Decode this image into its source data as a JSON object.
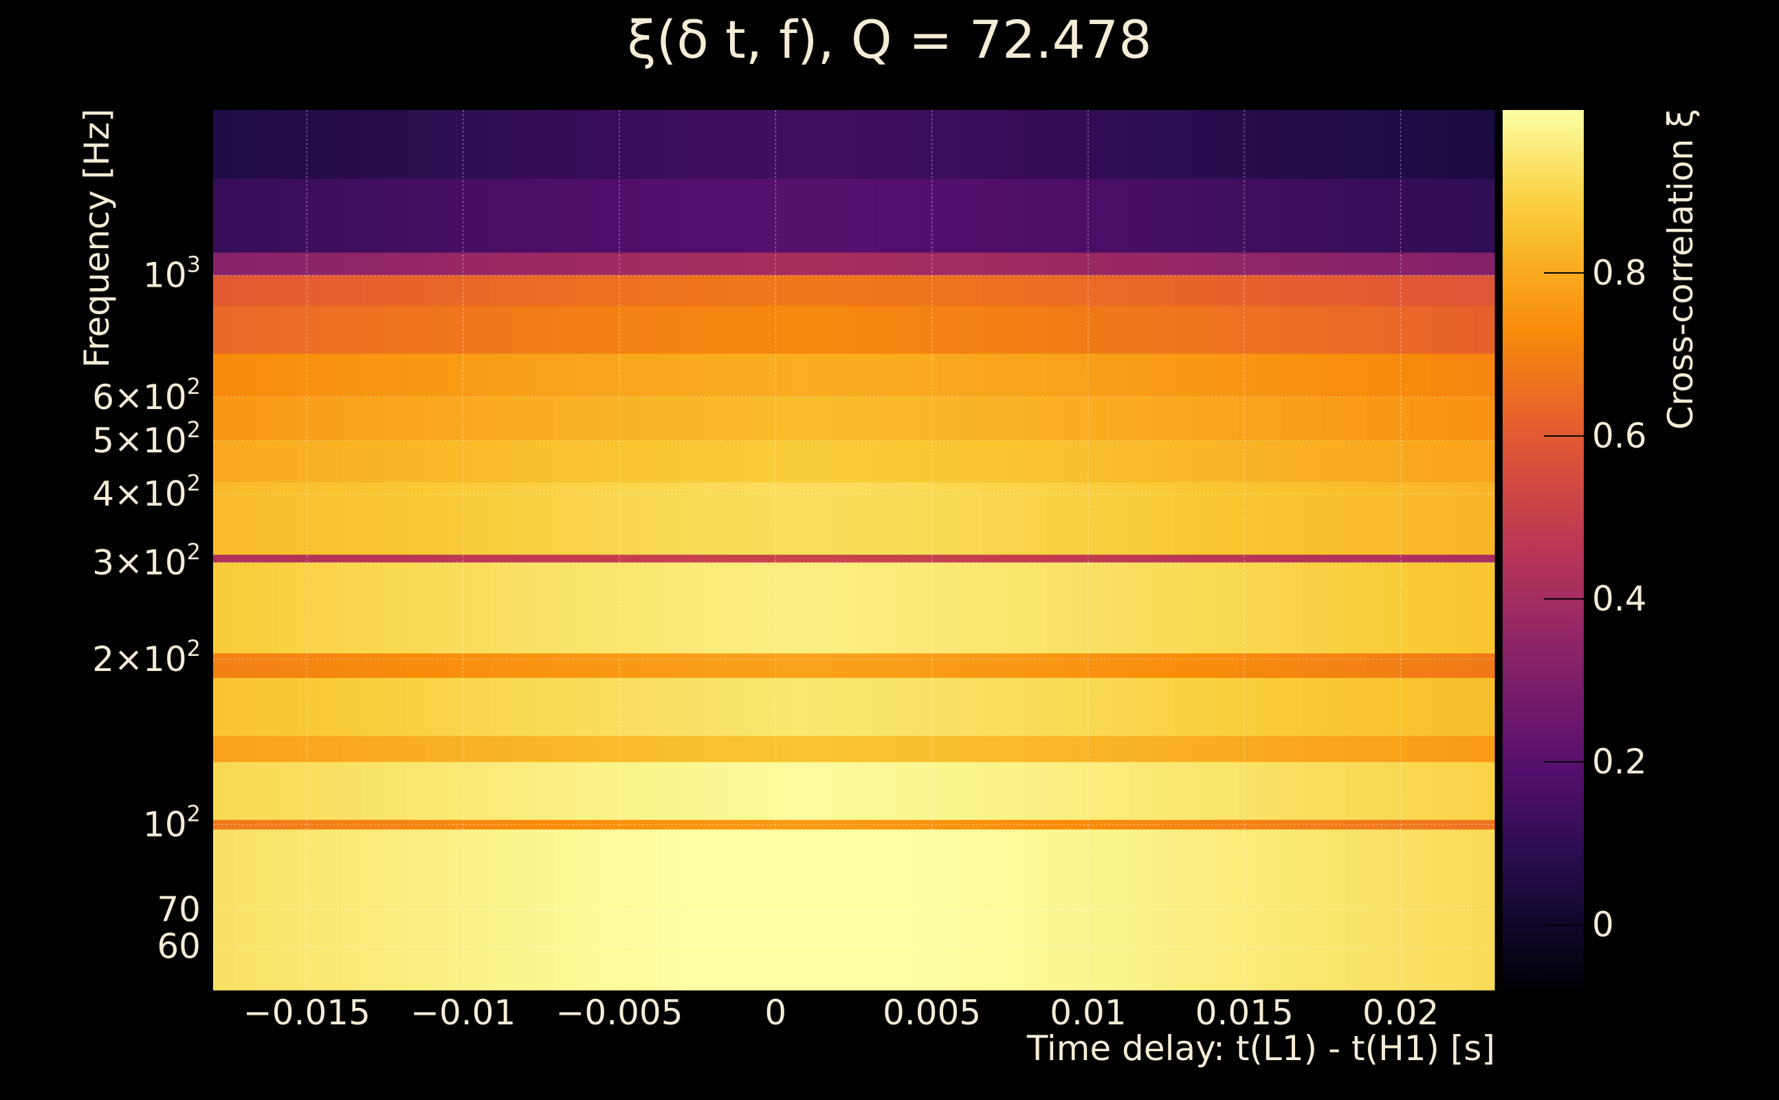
{
  "chart_data": {
    "type": "heatmap",
    "title": "ξ(δ t, f), Q = 72.478",
    "xlabel": "Time delay: t(L1) - t(H1) [s]",
    "ylabel": "Frequency [Hz]",
    "colorbar_label": "Cross-correlation ξ",
    "colormap": "inferno",
    "xlim": [
      -0.018,
      0.023
    ],
    "ylim": [
      50,
      2000
    ],
    "yscale": "log",
    "grid": true,
    "x_ticks": [
      {
        "value": -0.015,
        "label": "−0.015"
      },
      {
        "value": -0.01,
        "label": "−0.01"
      },
      {
        "value": -0.005,
        "label": "−0.005"
      },
      {
        "value": 0,
        "label": "0"
      },
      {
        "value": 0.005,
        "label": "0.005"
      },
      {
        "value": 0.01,
        "label": "0.01"
      },
      {
        "value": 0.015,
        "label": "0.015"
      },
      {
        "value": 0.02,
        "label": "0.02"
      }
    ],
    "y_ticks": [
      {
        "value": 1000,
        "mantissa": "",
        "exponent": "3",
        "plain": ""
      },
      {
        "value": 600,
        "mantissa": "6×",
        "exponent": "2",
        "plain": ""
      },
      {
        "value": 500,
        "mantissa": "5×",
        "exponent": "2",
        "plain": ""
      },
      {
        "value": 400,
        "mantissa": "4×",
        "exponent": "2",
        "plain": ""
      },
      {
        "value": 300,
        "mantissa": "3×",
        "exponent": "2",
        "plain": ""
      },
      {
        "value": 200,
        "mantissa": "2×",
        "exponent": "2",
        "plain": ""
      },
      {
        "value": 100,
        "mantissa": "",
        "exponent": "2",
        "plain": ""
      },
      {
        "value": 70,
        "mantissa": "",
        "exponent": "",
        "plain": "70"
      },
      {
        "value": 60,
        "mantissa": "",
        "exponent": "",
        "plain": "60"
      }
    ],
    "colorbar_range": [
      -0.08,
      1.0
    ],
    "colorbar_ticks": [
      {
        "value": 0,
        "label": "0"
      },
      {
        "value": 0.2,
        "label": "0.2"
      },
      {
        "value": 0.4,
        "label": "0.4"
      },
      {
        "value": 0.6,
        "label": "0.6"
      },
      {
        "value": 0.8,
        "label": "0.8"
      }
    ],
    "frequency_bands": [
      {
        "f_low": 1500,
        "f_high": 2000,
        "xi": 0.08
      },
      {
        "f_low": 1100,
        "f_high": 1500,
        "xi": 0.14
      },
      {
        "f_low": 1000,
        "f_high": 1100,
        "xi": 0.35
      },
      {
        "f_low": 880,
        "f_high": 1000,
        "xi": 0.62
      },
      {
        "f_low": 720,
        "f_high": 880,
        "xi": 0.66
      },
      {
        "f_low": 600,
        "f_high": 720,
        "xi": 0.75
      },
      {
        "f_low": 500,
        "f_high": 600,
        "xi": 0.78
      },
      {
        "f_low": 420,
        "f_high": 500,
        "xi": 0.82
      },
      {
        "f_low": 310,
        "f_high": 420,
        "xi": 0.86
      },
      {
        "f_low": 300,
        "f_high": 310,
        "xi": 0.45
      },
      {
        "f_low": 205,
        "f_high": 300,
        "xi": 0.9
      },
      {
        "f_low": 185,
        "f_high": 205,
        "xi": 0.72
      },
      {
        "f_low": 145,
        "f_high": 185,
        "xi": 0.88
      },
      {
        "f_low": 130,
        "f_high": 145,
        "xi": 0.8
      },
      {
        "f_low": 102,
        "f_high": 130,
        "xi": 0.93
      },
      {
        "f_low": 98,
        "f_high": 102,
        "xi": 0.7
      },
      {
        "f_low": 50,
        "f_high": 98,
        "xi": 0.95
      }
    ],
    "peak_delay": 0.001
  }
}
